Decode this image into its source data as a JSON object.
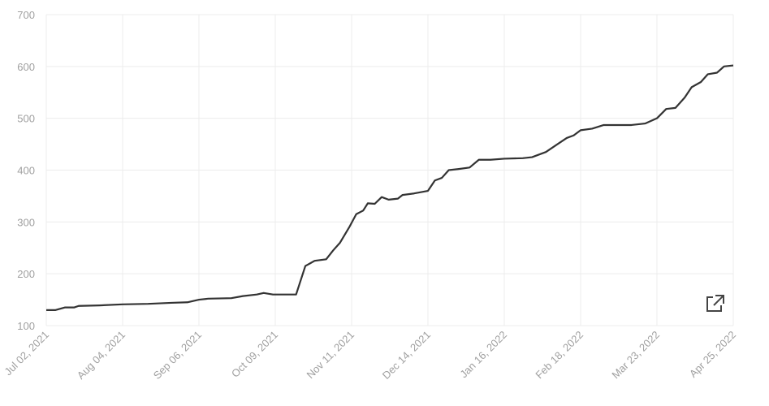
{
  "chart_data": {
    "type": "line",
    "x": [
      "2021-07-02",
      "2021-07-06",
      "2021-07-10",
      "2021-07-14",
      "2021-07-16",
      "2021-07-25",
      "2021-08-04",
      "2021-08-15",
      "2021-08-25",
      "2021-09-01",
      "2021-09-06",
      "2021-09-10",
      "2021-09-20",
      "2021-09-25",
      "2021-10-01",
      "2021-10-04",
      "2021-10-08",
      "2021-10-13",
      "2021-10-18",
      "2021-10-22",
      "2021-10-26",
      "2021-10-31",
      "2021-11-03",
      "2021-11-06",
      "2021-11-10",
      "2021-11-13",
      "2021-11-16",
      "2021-11-18",
      "2021-11-21",
      "2021-11-24",
      "2021-11-27",
      "2021-12-01",
      "2021-12-03",
      "2021-12-08",
      "2021-12-14",
      "2021-12-17",
      "2021-12-20",
      "2021-12-23",
      "2021-12-27",
      "2022-01-01",
      "2022-01-05",
      "2022-01-10",
      "2022-01-16",
      "2022-01-24",
      "2022-01-28",
      "2022-02-03",
      "2022-02-08",
      "2022-02-12",
      "2022-02-15",
      "2022-02-18",
      "2022-02-23",
      "2022-02-28",
      "2022-03-05",
      "2022-03-12",
      "2022-03-18",
      "2022-03-23",
      "2022-03-27",
      "2022-03-31",
      "2022-04-04",
      "2022-04-07",
      "2022-04-11",
      "2022-04-14",
      "2022-04-18",
      "2022-04-21",
      "2022-04-25"
    ],
    "series": [
      {
        "color": "#333333",
        "values": [
          130,
          130,
          135,
          135,
          138,
          139,
          141,
          142,
          144,
          145,
          150,
          152,
          153,
          157,
          160,
          163,
          160,
          160,
          160,
          215,
          225,
          228,
          245,
          260,
          290,
          315,
          322,
          336,
          335,
          348,
          343,
          345,
          352,
          355,
          360,
          380,
          385,
          400,
          402,
          405,
          420,
          420,
          422,
          423,
          425,
          435,
          450,
          462,
          467,
          477,
          480,
          487,
          487,
          487,
          490,
          500,
          518,
          520,
          540,
          560,
          570,
          585,
          588,
          600,
          602
        ]
      }
    ],
    "xlim": [
      "2021-07-02",
      "2022-04-25"
    ],
    "xticks": [
      {
        "value": "2021-07-02",
        "label": "Jul 02, 2021"
      },
      {
        "value": "2021-08-04",
        "label": "Aug 04, 2021"
      },
      {
        "value": "2021-09-06",
        "label": "Sep 06, 2021"
      },
      {
        "value": "2021-10-09",
        "label": "Oct 09, 2021"
      },
      {
        "value": "2021-11-11",
        "label": "Nov 11, 2021"
      },
      {
        "value": "2021-12-14",
        "label": "Dec 14, 2021"
      },
      {
        "value": "2022-01-16",
        "label": "Jan 16, 2022"
      },
      {
        "value": "2022-02-18",
        "label": "Feb 18, 2022"
      },
      {
        "value": "2022-03-23",
        "label": "Mar 23, 2022"
      },
      {
        "value": "2022-04-25",
        "label": "Apr 25, 2022"
      }
    ],
    "ylim": [
      100,
      700
    ],
    "yticks": [
      100,
      200,
      300,
      400,
      500,
      600,
      700
    ],
    "grid": true
  }
}
